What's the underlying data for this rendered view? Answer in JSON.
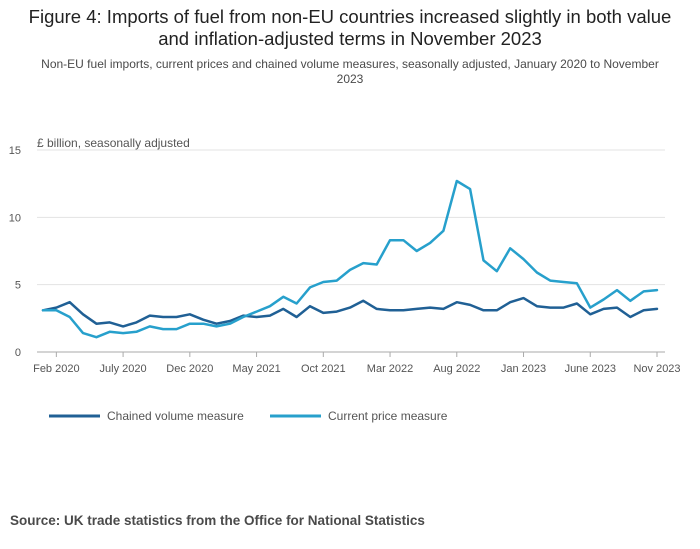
{
  "title": "Figure 4: Imports of fuel from non-EU countries increased slightly in both value and inflation-adjusted terms in November 2023",
  "subtitle": "Non-EU fuel imports, current prices and chained volume measures, seasonally adjusted, January 2020 to November 2023",
  "source": "Source: UK trade statistics from the Office for National Statistics",
  "chart_data": {
    "type": "line",
    "ylabel": "£ billion, seasonally adjusted",
    "xlabel": "",
    "ylim": [
      0,
      15
    ],
    "yticks": [
      0,
      5,
      10,
      15
    ],
    "grid": true,
    "legend_position": "bottom-left",
    "x_start": "2020-01",
    "x_end": "2023-11",
    "xtick_labels": [
      {
        "label": "Feb 2020",
        "month_index": 1
      },
      {
        "label": "July 2020",
        "month_index": 6
      },
      {
        "label": "Dec 2020",
        "month_index": 11
      },
      {
        "label": "May 2021",
        "month_index": 16
      },
      {
        "label": "Oct 2021",
        "month_index": 21
      },
      {
        "label": "Mar 2022",
        "month_index": 26
      },
      {
        "label": "Aug 2022",
        "month_index": 31
      },
      {
        "label": "Jan 2023",
        "month_index": 36
      },
      {
        "label": "June 2023",
        "month_index": 41
      },
      {
        "label": "Nov 2023",
        "month_index": 46
      }
    ],
    "series": [
      {
        "name": "Chained volume measure",
        "color": "#206095",
        "values": [
          3.1,
          3.3,
          3.7,
          2.8,
          2.1,
          2.2,
          1.9,
          2.2,
          2.7,
          2.6,
          2.6,
          2.8,
          2.4,
          2.1,
          2.3,
          2.7,
          2.6,
          2.7,
          3.2,
          2.6,
          3.4,
          2.9,
          3.0,
          3.3,
          3.8,
          3.2,
          3.1,
          3.1,
          3.2,
          3.3,
          3.2,
          3.7,
          3.5,
          3.1,
          3.1,
          3.7,
          4.0,
          3.4,
          3.3,
          3.3,
          3.6,
          2.8,
          3.2,
          3.3,
          2.6,
          3.1,
          3.2
        ]
      },
      {
        "name": "Current price measure",
        "color": "#27a0cc",
        "values": [
          3.1,
          3.1,
          2.6,
          1.4,
          1.1,
          1.5,
          1.4,
          1.5,
          1.9,
          1.7,
          1.7,
          2.1,
          2.1,
          1.9,
          2.1,
          2.6,
          3.0,
          3.4,
          4.1,
          3.6,
          4.8,
          5.2,
          5.3,
          6.1,
          6.6,
          6.5,
          8.3,
          8.3,
          7.5,
          8.1,
          9.0,
          12.7,
          12.1,
          6.8,
          6.0,
          7.7,
          6.9,
          5.9,
          5.3,
          5.2,
          5.1,
          3.3,
          3.9,
          4.6,
          3.8,
          4.5,
          4.6
        ]
      }
    ]
  }
}
